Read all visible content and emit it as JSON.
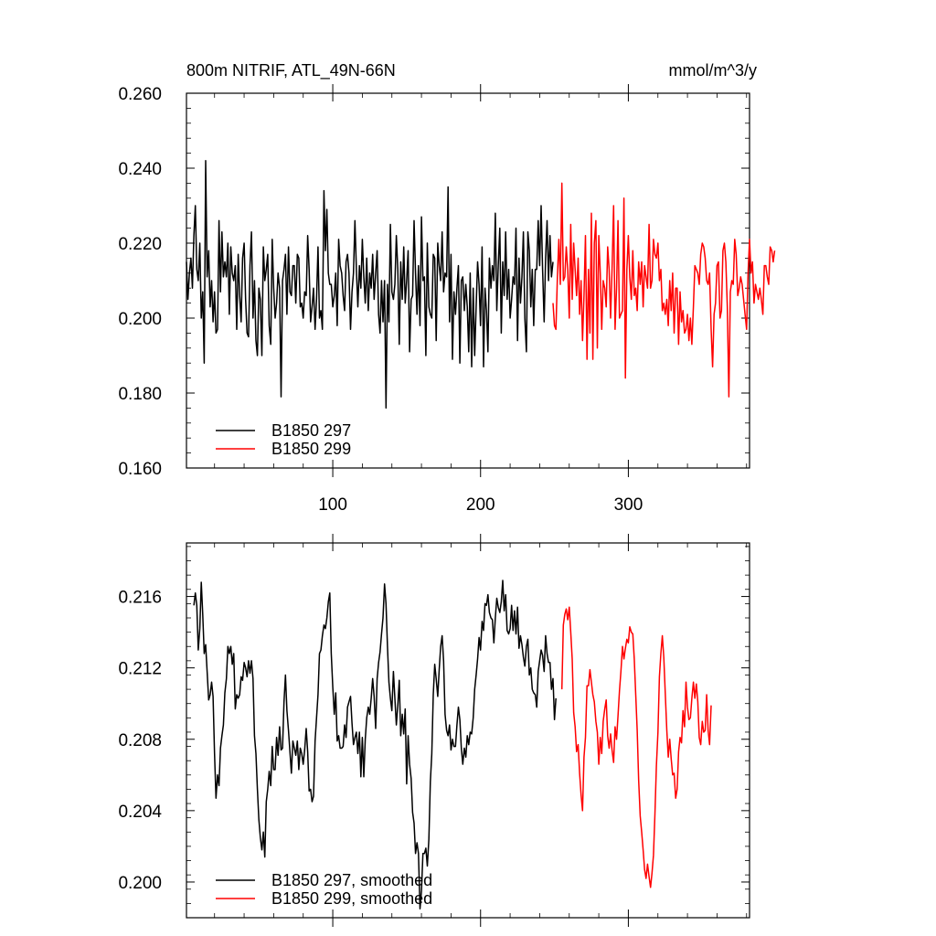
{
  "chart_data": [
    {
      "type": "line",
      "title_left": "800m NITRIF, ATL_49N-66N",
      "title_right": "mmol/m^3/y",
      "xlim": [
        1,
        382
      ],
      "ylim": [
        0.16,
        0.26
      ],
      "x_ticks": [
        100,
        200,
        300
      ],
      "x_tick_labels": [
        "100",
        "200",
        "300"
      ],
      "y_ticks": [
        0.16,
        0.18,
        0.2,
        0.22,
        0.24,
        0.26
      ],
      "y_tick_labels": [
        "0.160",
        "0.180",
        "0.200",
        "0.220",
        "0.240",
        "0.260"
      ],
      "legend_position": "bottom-left",
      "series": [
        {
          "name": "B1850 297",
          "color": "#000000",
          "x_start": 1,
          "values": [
            0.215,
            0.205,
            0.212,
            0.216,
            0.208,
            0.222,
            0.23,
            0.213,
            0.21,
            0.22,
            0.2,
            0.207,
            0.188,
            0.242,
            0.211,
            0.218,
            0.203,
            0.21,
            0.199,
            0.207,
            0.196,
            0.197,
            0.226,
            0.207,
            0.223,
            0.211,
            0.215,
            0.211,
            0.22,
            0.201,
            0.219,
            0.212,
            0.21,
            0.214,
            0.197,
            0.217,
            0.206,
            0.199,
            0.216,
            0.22,
            0.205,
            0.196,
            0.195,
            0.214,
            0.223,
            0.2,
            0.21,
            0.194,
            0.19,
            0.208,
            0.205,
            0.19,
            0.219,
            0.21,
            0.213,
            0.217,
            0.198,
            0.193,
            0.221,
            0.208,
            0.2,
            0.204,
            0.212,
            0.208,
            0.179,
            0.21,
            0.213,
            0.217,
            0.201,
            0.219,
            0.207,
            0.206,
            0.214,
            0.214,
            0.204,
            0.217,
            0.216,
            0.203,
            0.204,
            0.2,
            0.207,
            0.206,
            0.222,
            0.213,
            0.199,
            0.203,
            0.208,
            0.197,
            0.205,
            0.219,
            0.2,
            0.202,
            0.197,
            0.234,
            0.218,
            0.229,
            0.212,
            0.209,
            0.209,
            0.203,
            0.206,
            0.212,
            0.198,
            0.221,
            0.214,
            0.212,
            0.206,
            0.202,
            0.215,
            0.217,
            0.212,
            0.197,
            0.207,
            0.212,
            0.226,
            0.213,
            0.203,
            0.214,
            0.208,
            0.221,
            0.211,
            0.204,
            0.216,
            0.202,
            0.212,
            0.208,
            0.217,
            0.205,
            0.212,
            0.218,
            0.201,
            0.196,
            0.21,
            0.199,
            0.21,
            0.176,
            0.209,
            0.199,
            0.225,
            0.207,
            0.205,
            0.209,
            0.222,
            0.213,
            0.193,
            0.215,
            0.205,
            0.219,
            0.204,
            0.21,
            0.218,
            0.191,
            0.205,
            0.206,
            0.226,
            0.212,
            0.201,
            0.214,
            0.198,
            0.227,
            0.21,
            0.211,
            0.19,
            0.22,
            0.203,
            0.201,
            0.2,
            0.217,
            0.216,
            0.194,
            0.22,
            0.214,
            0.21,
            0.223,
            0.207,
            0.212,
            0.211,
            0.235,
            0.199,
            0.217,
            0.189,
            0.207,
            0.201,
            0.208,
            0.214,
            0.188,
            0.21,
            0.211,
            0.202,
            0.209,
            0.203,
            0.191,
            0.212,
            0.187,
            0.208,
            0.19,
            0.203,
            0.215,
            0.209,
            0.198,
            0.219,
            0.187,
            0.208,
            0.202,
            0.191,
            0.216,
            0.208,
            0.214,
            0.21,
            0.228,
            0.202,
            0.214,
            0.224,
            0.196,
            0.215,
            0.206,
            0.223,
            0.205,
            0.213,
            0.2,
            0.205,
            0.211,
            0.209,
            0.224,
            0.194,
            0.216,
            0.204,
            0.211,
            0.223,
            0.2,
            0.191,
            0.223,
            0.218,
            0.203,
            0.213,
            0.198,
            0.213,
            0.213,
            0.226,
            0.214,
            0.23,
            0.213,
            0.199,
            0.216,
            0.226,
            0.21,
            0.222,
            0.211,
            0.215
          ]
        },
        {
          "name": "B1850 299",
          "color": "#ff0000",
          "x_start": 249,
          "values": [
            0.204,
            0.198,
            0.197,
            0.211,
            0.221,
            0.209,
            0.236,
            0.21,
            0.211,
            0.219,
            0.213,
            0.2,
            0.225,
            0.205,
            0.22,
            0.213,
            0.206,
            0.216,
            0.201,
            0.21,
            0.194,
            0.206,
            0.222,
            0.189,
            0.213,
            0.196,
            0.228,
            0.189,
            0.22,
            0.226,
            0.192,
            0.222,
            0.212,
            0.197,
            0.21,
            0.208,
            0.203,
            0.219,
            0.213,
            0.2,
            0.213,
            0.23,
            0.197,
            0.208,
            0.226,
            0.2,
            0.201,
            0.202,
            0.232,
            0.184,
            0.213,
            0.222,
            0.211,
            0.205,
            0.218,
            0.206,
            0.208,
            0.202,
            0.215,
            0.209,
            0.215,
            0.203,
            0.214,
            0.211,
            0.208,
            0.225,
            0.208,
            0.21,
            0.221,
            0.217,
            0.216,
            0.22,
            0.21,
            0.213,
            0.202,
            0.204,
            0.201,
            0.205,
            0.198,
            0.21,
            0.202,
            0.212,
            0.196,
            0.208,
            0.208,
            0.193,
            0.207,
            0.199,
            0.202,
            0.196,
            0.197,
            0.201,
            0.194,
            0.2,
            0.193,
            0.203,
            0.214,
            0.213,
            0.212,
            0.209,
            0.217,
            0.22,
            0.219,
            0.216,
            0.21,
            0.209,
            0.212,
            0.197,
            0.187,
            0.201,
            0.204,
            0.214,
            0.215,
            0.2,
            0.202,
            0.218,
            0.22,
            0.215,
            0.203,
            0.179,
            0.207,
            0.21,
            0.209,
            0.221,
            0.217,
            0.206,
            0.208,
            0.211,
            0.209,
            0.205,
            0.201,
            0.197,
            0.212,
            0.221,
            0.212,
            0.215,
            0.204,
            0.209,
            0.207,
            0.205,
            0.208,
            0.205,
            0.201,
            0.214,
            0.214,
            0.211,
            0.209,
            0.219,
            0.218,
            0.215,
            0.218
          ]
        }
      ]
    },
    {
      "type": "line",
      "xlim": [
        1,
        382
      ],
      "ylim": [
        0.198,
        0.219
      ],
      "x_ticks": [
        100,
        200,
        300
      ],
      "y_ticks": [
        0.2,
        0.204,
        0.208,
        0.212,
        0.216
      ],
      "y_tick_labels": [
        "0.200",
        "0.204",
        "0.208",
        "0.212",
        "0.216"
      ],
      "legend_position": "bottom-left",
      "series": [
        {
          "name": "B1850 297, smoothed",
          "color": "#000000",
          "x_start": 6,
          "values": [
            0.2155,
            0.2162,
            0.2155,
            0.213,
            0.2142,
            0.2168,
            0.215,
            0.2128,
            0.2133,
            0.2118,
            0.2102,
            0.2105,
            0.2112,
            0.2104,
            0.2072,
            0.2047,
            0.206,
            0.2054,
            0.2075,
            0.2082,
            0.2088,
            0.2106,
            0.2114,
            0.2132,
            0.2128,
            0.2132,
            0.2122,
            0.2128,
            0.2097,
            0.2105,
            0.2103,
            0.2105,
            0.2115,
            0.2113,
            0.2123,
            0.212,
            0.2115,
            0.2124,
            0.2117,
            0.2124,
            0.2114,
            0.2082,
            0.2072,
            0.2052,
            0.2035,
            0.2025,
            0.2018,
            0.2028,
            0.2014,
            0.2045,
            0.2052,
            0.2062,
            0.2054,
            0.2076,
            0.2063,
            0.2063,
            0.2081,
            0.2071,
            0.2087,
            0.2074,
            0.2075,
            0.2101,
            0.2116,
            0.2096,
            0.2085,
            0.2073,
            0.2061,
            0.2079,
            0.2075,
            0.2071,
            0.2079,
            0.2063,
            0.2075,
            0.2072,
            0.2066,
            0.2074,
            0.2086,
            0.2073,
            0.2051,
            0.2052,
            0.2045,
            0.2048,
            0.2079,
            0.2092,
            0.2105,
            0.2128,
            0.213,
            0.2138,
            0.2144,
            0.2142,
            0.2148,
            0.2157,
            0.2162,
            0.2128,
            0.2109,
            0.2094,
            0.2106,
            0.2079,
            0.2082,
            0.2075,
            0.2075,
            0.2076,
            0.2088,
            0.2081,
            0.2098,
            0.2101,
            0.2104,
            0.2089,
            0.2077,
            0.2081,
            0.2084,
            0.2072,
            0.2084,
            0.2059,
            0.2081,
            0.2059,
            0.208,
            0.2092,
            0.2098,
            0.2094,
            0.2103,
            0.2114,
            0.2104,
            0.2086,
            0.2114,
            0.2123,
            0.2129,
            0.2139,
            0.2148,
            0.2167,
            0.2156,
            0.2132,
            0.2112,
            0.2103,
            0.2096,
            0.2118,
            0.2103,
            0.2088,
            0.2099,
            0.2113,
            0.2082,
            0.2094,
            0.2083,
            0.2097,
            0.2055,
            0.2082,
            0.2066,
            0.2058,
            0.2039,
            0.2033,
            0.2016,
            0.2022,
            0.2016,
            0.1985,
            0.1995,
            0.2016,
            0.2016,
            0.2019,
            0.2009,
            0.2024,
            0.2056,
            0.2072,
            0.2105,
            0.2122,
            0.2114,
            0.2104,
            0.2119,
            0.2132,
            0.2138,
            0.2124,
            0.2094,
            0.2085,
            0.2082,
            0.2088,
            0.2074,
            0.208,
            0.2076,
            0.2076,
            0.2088,
            0.2098,
            0.2091,
            0.2075,
            0.2066,
            0.2075,
            0.207,
            0.2082,
            0.2077,
            0.2084,
            0.2083,
            0.2092,
            0.2108,
            0.2116,
            0.2125,
            0.2137,
            0.213,
            0.2146,
            0.2141,
            0.2156,
            0.2155,
            0.2161,
            0.2151,
            0.2148,
            0.2147,
            0.2134,
            0.2148,
            0.2159,
            0.2154,
            0.2151,
            0.2157,
            0.2169,
            0.2152,
            0.2161,
            0.2141,
            0.2139,
            0.2142,
            0.2155,
            0.2141,
            0.2152,
            0.2139,
            0.2154,
            0.2131,
            0.2138,
            0.2133,
            0.2126,
            0.2121,
            0.2132,
            0.2136,
            0.2116,
            0.212,
            0.2108,
            0.2106,
            0.2105,
            0.2098,
            0.2118,
            0.2124,
            0.213,
            0.2127,
            0.2118,
            0.2138,
            0.2128,
            0.2123,
            0.2123,
            0.2108,
            0.2114,
            0.2091,
            0.2103
          ]
        },
        {
          "name": "B1850 299, smoothed",
          "color": "#ff0000",
          "x_start": 255,
          "values": [
            0.2108,
            0.2144,
            0.215,
            0.2153,
            0.2147,
            0.2154,
            0.214,
            0.2125,
            0.2095,
            0.2087,
            0.2073,
            0.2077,
            0.2061,
            0.2049,
            0.204,
            0.207,
            0.2081,
            0.211,
            0.211,
            0.2119,
            0.2112,
            0.2105,
            0.2101,
            0.209,
            0.2084,
            0.2066,
            0.2081,
            0.2072,
            0.209,
            0.2097,
            0.2102,
            0.2082,
            0.2075,
            0.2083,
            0.2074,
            0.2067,
            0.2087,
            0.208,
            0.2093,
            0.2107,
            0.2118,
            0.2132,
            0.2125,
            0.2131,
            0.2136,
            0.2134,
            0.2143,
            0.214,
            0.2139,
            0.2125,
            0.2105,
            0.2085,
            0.2057,
            0.2037,
            0.2028,
            0.2018,
            0.2007,
            0.2002,
            0.201,
            0.2003,
            0.1997,
            0.2005,
            0.2015,
            0.2038,
            0.2065,
            0.2084,
            0.2115,
            0.2128,
            0.2138,
            0.2126,
            0.2106,
            0.2085,
            0.207,
            0.208,
            0.2069,
            0.206,
            0.2061,
            0.2047,
            0.2052,
            0.2073,
            0.2081,
            0.2078,
            0.2096,
            0.2087,
            0.2112,
            0.2098,
            0.2091,
            0.2092,
            0.2103,
            0.2112,
            0.2103,
            0.2111,
            0.2101,
            0.2081,
            0.2077,
            0.209,
            0.2084,
            0.2085,
            0.2105,
            0.2085,
            0.2077,
            0.2099
          ]
        }
      ]
    }
  ]
}
